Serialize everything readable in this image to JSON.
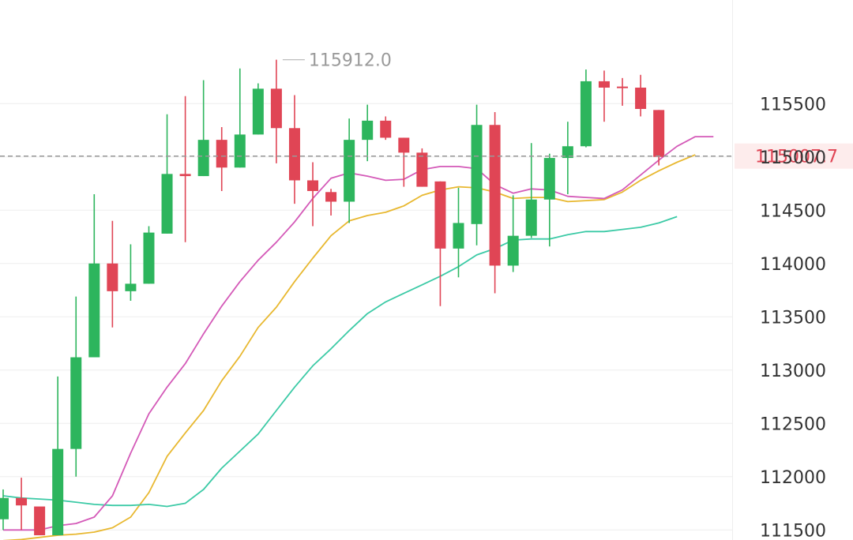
{
  "chart_data": {
    "type": "candlestick",
    "y_ticks": [
      "115500",
      "115000",
      "114500",
      "114000",
      "113500",
      "113000",
      "112500",
      "112000",
      "111500"
    ],
    "y_tick_values": [
      115500,
      115000,
      114500,
      114000,
      113500,
      113000,
      112500,
      112000,
      111500
    ],
    "ylim": [
      111450,
      116250
    ],
    "grid": true,
    "max_label": "115912.0",
    "max_value": 115912.0,
    "current_label": "115007.7",
    "current_value": 115007.7,
    "colors": {
      "up": "#2db55d",
      "down": "#e04555",
      "ma_pink": "#d45ab8",
      "ma_yellow": "#e8b830",
      "ma_teal": "#3ccaa6",
      "grid": "#eeeeee",
      "current_line": "#999999",
      "current_bg": "#fdecec"
    },
    "candles": [
      {
        "o": 111600,
        "h": 111880,
        "l": 111500,
        "c": 111800
      },
      {
        "o": 111800,
        "h": 111990,
        "l": 111500,
        "c": 111730
      },
      {
        "o": 111720,
        "h": 111700,
        "l": 111450,
        "c": 111450
      },
      {
        "o": 111450,
        "h": 112940,
        "l": 111450,
        "c": 112260
      },
      {
        "o": 112260,
        "h": 113690,
        "l": 112000,
        "c": 113120
      },
      {
        "o": 113120,
        "h": 114650,
        "l": 113120,
        "c": 114000
      },
      {
        "o": 114000,
        "h": 114400,
        "l": 113400,
        "c": 113740
      },
      {
        "o": 113740,
        "h": 114180,
        "l": 113650,
        "c": 113810
      },
      {
        "o": 113810,
        "h": 114350,
        "l": 113810,
        "c": 114290
      },
      {
        "o": 114280,
        "h": 115400,
        "l": 114280,
        "c": 114840
      },
      {
        "o": 114840,
        "h": 115570,
        "l": 114200,
        "c": 114820
      },
      {
        "o": 114820,
        "h": 115720,
        "l": 114820,
        "c": 115160
      },
      {
        "o": 115160,
        "h": 115280,
        "l": 114680,
        "c": 114900
      },
      {
        "o": 114900,
        "h": 115830,
        "l": 114900,
        "c": 115210
      },
      {
        "o": 115210,
        "h": 115690,
        "l": 115210,
        "c": 115640
      },
      {
        "o": 115640,
        "h": 115912,
        "l": 114940,
        "c": 115270
      },
      {
        "o": 115270,
        "h": 115580,
        "l": 114560,
        "c": 114780
      },
      {
        "o": 114780,
        "h": 114950,
        "l": 114350,
        "c": 114680
      },
      {
        "o": 114670,
        "h": 114700,
        "l": 114450,
        "c": 114580
      },
      {
        "o": 114580,
        "h": 115360,
        "l": 114380,
        "c": 115160
      },
      {
        "o": 115160,
        "h": 115490,
        "l": 114960,
        "c": 115340
      },
      {
        "o": 115340,
        "h": 115380,
        "l": 115160,
        "c": 115180
      },
      {
        "o": 115180,
        "h": 115180,
        "l": 114720,
        "c": 115040
      },
      {
        "o": 115040,
        "h": 115080,
        "l": 114720,
        "c": 114720
      },
      {
        "o": 114770,
        "h": 114770,
        "l": 113600,
        "c": 114140
      },
      {
        "o": 114140,
        "h": 114710,
        "l": 113870,
        "c": 114380
      },
      {
        "o": 114370,
        "h": 115490,
        "l": 114170,
        "c": 115300
      },
      {
        "o": 115300,
        "h": 115420,
        "l": 113720,
        "c": 113980
      },
      {
        "o": 113980,
        "h": 114640,
        "l": 113920,
        "c": 114260
      },
      {
        "o": 114260,
        "h": 115130,
        "l": 114240,
        "c": 114600
      },
      {
        "o": 114600,
        "h": 115030,
        "l": 114160,
        "c": 114990
      },
      {
        "o": 114990,
        "h": 115330,
        "l": 114650,
        "c": 115100
      },
      {
        "o": 115100,
        "h": 115820,
        "l": 115090,
        "c": 115710
      },
      {
        "o": 115710,
        "h": 115810,
        "l": 115330,
        "c": 115650
      },
      {
        "o": 115660,
        "h": 115740,
        "l": 115480,
        "c": 115650
      },
      {
        "o": 115650,
        "h": 115770,
        "l": 115380,
        "c": 115450
      },
      {
        "o": 115440,
        "h": 115440,
        "l": 114920,
        "c": 115000
      }
    ],
    "ma_pink": [
      111500,
      111500,
      111500,
      111540,
      111560,
      111620,
      111820,
      112220,
      112590,
      112840,
      113060,
      113340,
      113600,
      113830,
      114030,
      114200,
      114390,
      114610,
      114800,
      114850,
      114820,
      114780,
      114790,
      114880,
      114910,
      114910,
      114890,
      114740,
      114660,
      114700,
      114690,
      114630,
      114620,
      114610,
      114690,
      114830,
      114970,
      115100,
      115190,
      115190
    ],
    "ma_yellow": [
      111400,
      111410,
      111430,
      111450,
      111460,
      111480,
      111520,
      111620,
      111850,
      112190,
      112410,
      112620,
      112900,
      113130,
      113400,
      113590,
      113830,
      114050,
      114260,
      114400,
      114450,
      114480,
      114540,
      114640,
      114690,
      114720,
      114710,
      114670,
      114610,
      114620,
      114620,
      114580,
      114590,
      114600,
      114670,
      114780,
      114870,
      114950,
      115020
    ],
    "ma_teal": [
      111820,
      111800,
      111790,
      111780,
      111760,
      111740,
      111730,
      111730,
      111740,
      111720,
      111750,
      111880,
      112080,
      112240,
      112400,
      112620,
      112840,
      113040,
      113200,
      113370,
      113530,
      113640,
      113720,
      113800,
      113880,
      113970,
      114080,
      114140,
      114220,
      114230,
      114230,
      114270,
      114300,
      114300,
      114320,
      114340,
      114380,
      114440
    ]
  }
}
